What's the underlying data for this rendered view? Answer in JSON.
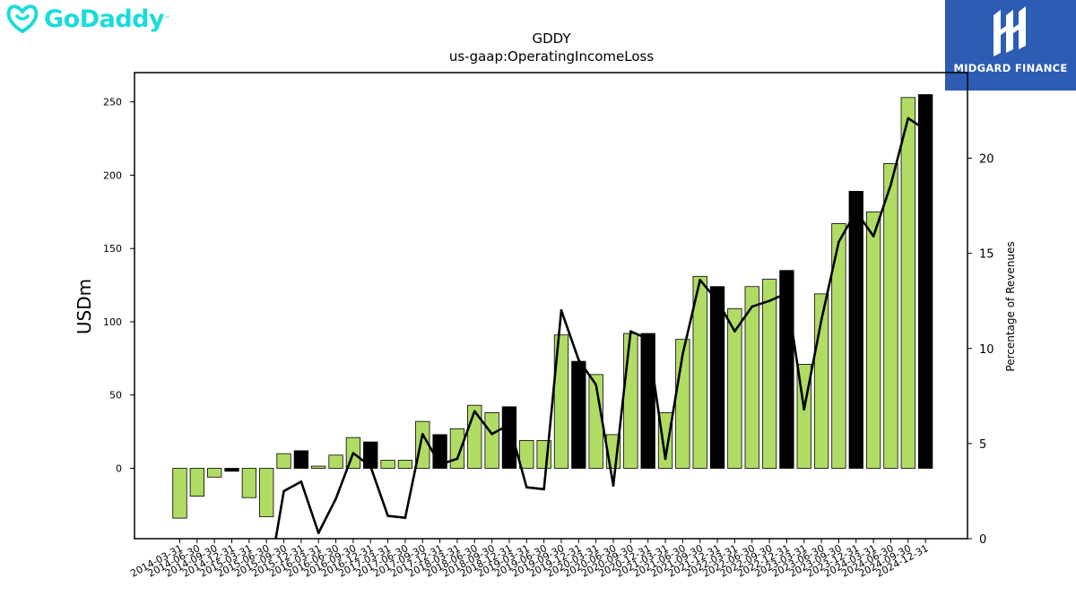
{
  "brand_left": {
    "name": "GoDaddy",
    "color": "#1bdbdb"
  },
  "brand_right": {
    "name": "MIDGARD FINANCE",
    "bg": "#2c5cb3"
  },
  "colors": {
    "bar_fill": "#b0dc64",
    "bar_highlight": "#000000",
    "line": "#000000"
  },
  "chart_data": {
    "type": "bar",
    "title": "GDDY",
    "subtitle": "us-gaap:OperatingIncomeLoss",
    "ylabel": "USDm",
    "y2label": "Percentage of Revenues",
    "ylim": [
      -48,
      270
    ],
    "y2lim": [
      0,
      24.5
    ],
    "yticks": [
      0,
      50,
      100,
      150,
      200,
      250
    ],
    "y2ticks": [
      0,
      5,
      10,
      15,
      20
    ],
    "categories": [
      "2014-03-31",
      "2014-06-30",
      "2014-09-30",
      "2014-12-31",
      "2015-03-31",
      "2015-06-30",
      "2015-09-30",
      "2015-12-31",
      "2016-03-31",
      "2016-06-30",
      "2016-09-30",
      "2016-12-31",
      "2017-03-31",
      "2017-06-30",
      "2017-09-30",
      "2017-12-31",
      "2018-03-31",
      "2018-06-30",
      "2018-09-30",
      "2018-12-31",
      "2019-03-31",
      "2019-06-30",
      "2019-09-30",
      "2019-12-31",
      "2020-03-31",
      "2020-06-30",
      "2020-09-30",
      "2020-12-31",
      "2021-03-31",
      "2021-06-30",
      "2021-09-30",
      "2021-12-31",
      "2022-03-31",
      "2022-06-30",
      "2022-09-30",
      "2022-12-31",
      "2023-03-31",
      "2023-06-30",
      "2023-09-30",
      "2023-12-31",
      "2024-03-31",
      "2024-06-30",
      "2024-09-30",
      "2024-12-31"
    ],
    "series": [
      {
        "type": "bar",
        "values": [
          -34,
          -19,
          -6,
          -2,
          -20,
          -33,
          10,
          12,
          1.5,
          9,
          21,
          18,
          5.5,
          5.5,
          32,
          23,
          27,
          43,
          38,
          42,
          19,
          19,
          91,
          73,
          64,
          23,
          92,
          92,
          38,
          88,
          131,
          124,
          109,
          124,
          129,
          135,
          71,
          119,
          167,
          189,
          175,
          208,
          253,
          255
        ],
        "highlight": [
          false,
          false,
          false,
          true,
          false,
          false,
          false,
          true,
          false,
          false,
          false,
          true,
          false,
          false,
          false,
          true,
          false,
          false,
          false,
          true,
          false,
          false,
          false,
          true,
          false,
          false,
          false,
          true,
          false,
          false,
          false,
          true,
          false,
          false,
          false,
          true,
          false,
          false,
          false,
          true,
          false,
          false,
          false,
          true
        ]
      },
      {
        "type": "line",
        "axis": "right",
        "values": [
          null,
          null,
          null,
          null,
          null,
          null,
          2.5,
          3,
          0.3,
          2.1,
          4.5,
          3.8,
          1.2,
          1.1,
          5.5,
          3.9,
          4.2,
          6.7,
          5.5,
          6,
          2.7,
          2.6,
          12,
          9.4,
          8.1,
          2.8,
          10.9,
          10.5,
          4.2,
          9.7,
          13.6,
          12.5,
          10.9,
          12.2,
          12.5,
          12.9,
          6.8,
          11.5,
          15.6,
          17.2,
          15.9,
          18.6,
          22.1,
          21.5
        ]
      }
    ]
  }
}
